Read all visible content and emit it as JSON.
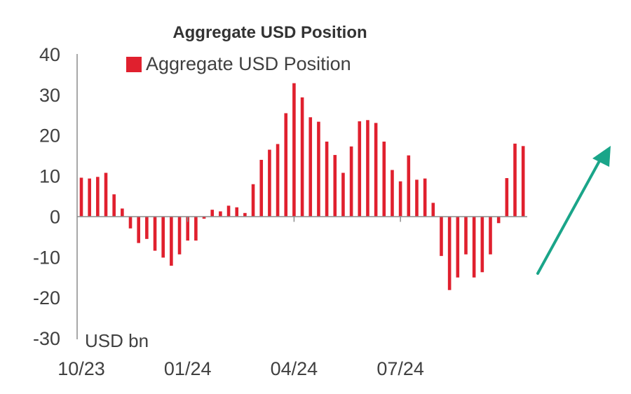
{
  "chart_data": {
    "type": "bar",
    "title": "Aggregate USD Position",
    "unit_label": "USD bn",
    "legend": [
      {
        "name": "Aggregate USD Position",
        "color": "#e0202e"
      }
    ],
    "legend_placement": "top-left",
    "ylim": [
      -30,
      40
    ],
    "yticks": [
      "40",
      "30",
      "20",
      "10",
      "0",
      "-10",
      "-20",
      "-30"
    ],
    "ytick_values": [
      40,
      30,
      20,
      10,
      0,
      -10,
      -20,
      -30
    ],
    "xtick_labels": [
      "10/23",
      "01/24",
      "04/24",
      "07/24"
    ],
    "xtick_bar_index": [
      0,
      13,
      26,
      39
    ],
    "grid": false,
    "series": [
      {
        "name": "Aggregate USD Position",
        "color": "#e0202e",
        "values": [
          9.5,
          9.3,
          9.7,
          10.7,
          5.4,
          1.9,
          -3.0,
          -6.6,
          -5.6,
          -8.5,
          -10.2,
          -12.2,
          -9.4,
          -6.0,
          -6.0,
          -0.6,
          1.6,
          1.2,
          2.6,
          2.2,
          0.8,
          7.9,
          13.9,
          16.4,
          17.8,
          25.4,
          32.8,
          29.3,
          24.4,
          23.3,
          18.4,
          15.1,
          10.7,
          17.2,
          23.4,
          23.7,
          23.0,
          18.4,
          11.4,
          8.6,
          15.0,
          9.0,
          9.3,
          3.3,
          -9.8,
          -18.2,
          -15.1,
          -9.4,
          -15.1,
          -13.8,
          -9.4,
          -1.7,
          9.4,
          17.9,
          17.3
        ]
      }
    ],
    "annotation": {
      "type": "arrow",
      "direction": "up",
      "color": "#1aa589"
    }
  }
}
